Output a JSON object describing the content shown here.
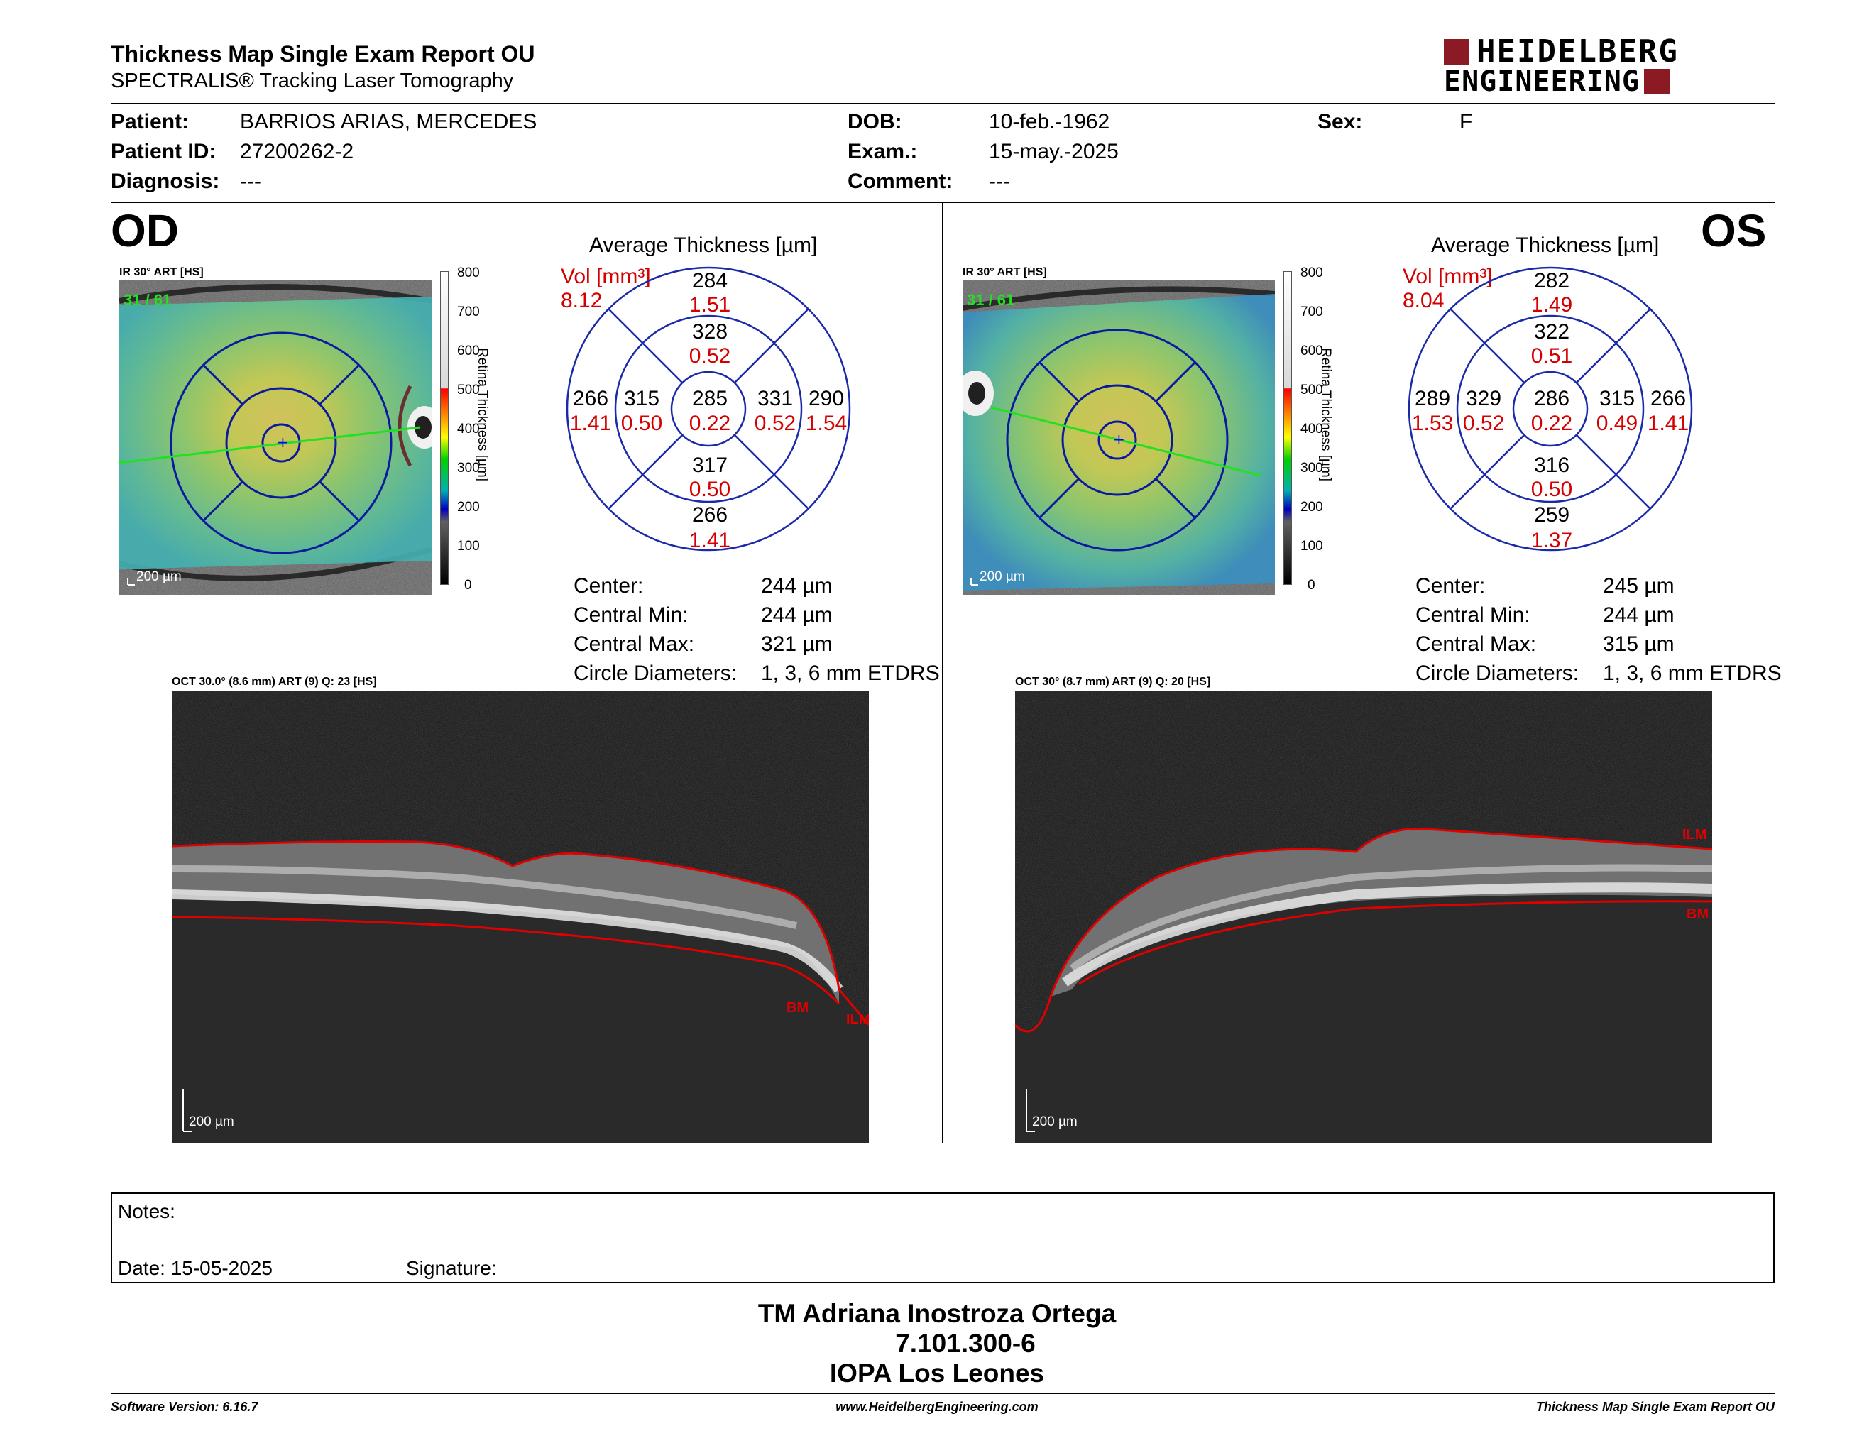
{
  "header": {
    "title": "Thickness Map Single Exam Report OU",
    "subtitle": "SPECTRALIS® Tracking Laser Tomography",
    "logo_line1": "HEIDELBERG",
    "logo_line2": "ENGINEERING",
    "logo_color": "#8b1a24"
  },
  "patient": {
    "patient_label": "Patient:",
    "patient_value": "BARRIOS ARIAS, MERCEDES",
    "id_label": "Patient ID:",
    "id_value": "27200262-2",
    "diagnosis_label": "Diagnosis:",
    "diagnosis_value": "---",
    "dob_label": "DOB:",
    "dob_value": "10-feb.-1962",
    "exam_label": "Exam.:",
    "exam_value": "15-may.-2025",
    "comment_label": "Comment:",
    "comment_value": "---",
    "sex_label": "Sex:",
    "sex_value": "F"
  },
  "od": {
    "eye": "OD",
    "ir_label": "IR 30° ART [HS]",
    "frame_label": "31 / 61",
    "scale_label": "200 µm",
    "colorbar_ticks": [
      "800",
      "700",
      "600",
      "500",
      "400",
      "300",
      "200",
      "100",
      "0"
    ],
    "colorbar_title": "Retina Thickness [µm]",
    "grid_title": "Average Thickness [µm]",
    "vol_label": "Vol [mm³]",
    "vol_total": "8.12",
    "sectors": {
      "superior_outer": {
        "t": "284",
        "v": "1.51"
      },
      "superior_inner": {
        "t": "328",
        "v": "0.52"
      },
      "center": {
        "t": "285",
        "v": "0.22"
      },
      "nasal_inner": {
        "t": "315",
        "v": "0.50"
      },
      "nasal_outer": {
        "t": "266",
        "v": "1.41"
      },
      "temporal_inner": {
        "t": "331",
        "v": "0.52"
      },
      "temporal_outer": {
        "t": "290",
        "v": "1.54"
      },
      "inferior_inner": {
        "t": "317",
        "v": "0.50"
      },
      "inferior_outer": {
        "t": "266",
        "v": "1.41"
      }
    },
    "stats": {
      "center_label": "Center:",
      "center_value": "244 µm",
      "cmin_label": "Central Min:",
      "cmin_value": "244 µm",
      "cmax_label": "Central Max:",
      "cmax_value": "321 µm",
      "diam_label": "Circle Diameters:",
      "diam_value": "1, 3, 6 mm ETDRS"
    },
    "oct_label": "OCT 30.0° (8.6 mm) ART (9) Q: 23 [HS]",
    "oct_scale": "200 µm",
    "ilm_label": "ILM",
    "bm_label": "BM"
  },
  "os": {
    "eye": "OS",
    "ir_label": "IR 30° ART [HS]",
    "frame_label": "31 / 61",
    "scale_label": "200 µm",
    "colorbar_ticks": [
      "800",
      "700",
      "600",
      "500",
      "400",
      "300",
      "200",
      "100",
      "0"
    ],
    "colorbar_title": "Retina Thickness [µm]",
    "grid_title": "Average Thickness [µm]",
    "vol_label": "Vol [mm³]",
    "vol_total": "8.04",
    "sectors": {
      "superior_outer": {
        "t": "282",
        "v": "1.49"
      },
      "superior_inner": {
        "t": "322",
        "v": "0.51"
      },
      "center": {
        "t": "286",
        "v": "0.22"
      },
      "temporal_outer": {
        "t": "289",
        "v": "1.53"
      },
      "temporal_inner": {
        "t": "329",
        "v": "0.52"
      },
      "nasal_inner": {
        "t": "315",
        "v": "0.49"
      },
      "nasal_outer": {
        "t": "266",
        "v": "1.41"
      },
      "inferior_inner": {
        "t": "316",
        "v": "0.50"
      },
      "inferior_outer": {
        "t": "259",
        "v": "1.37"
      }
    },
    "stats": {
      "center_label": "Center:",
      "center_value": "245 µm",
      "cmin_label": "Central Min:",
      "cmin_value": "244 µm",
      "cmax_label": "Central Max:",
      "cmax_value": "315 µm",
      "diam_label": "Circle Diameters:",
      "diam_value": "1, 3, 6 mm ETDRS"
    },
    "oct_label": "OCT 30° (8.7 mm) ART (9) Q: 20 [HS]",
    "oct_scale": "200 µm",
    "ilm_label": "ILM",
    "bm_label": "BM"
  },
  "notes": {
    "notes_label": "Notes:",
    "date_label": "Date: 15-05-2025",
    "signature_label": "Signature:"
  },
  "signer": {
    "name": "TM Adriana Inostroza Ortega",
    "rut": "7.101.300-6",
    "institution": "IOPA Los Leones"
  },
  "footer": {
    "software": "Software Version: 6.16.7",
    "website": "www.HeidelbergEngineering.com",
    "report": "Thickness Map Single Exam Report OU"
  }
}
